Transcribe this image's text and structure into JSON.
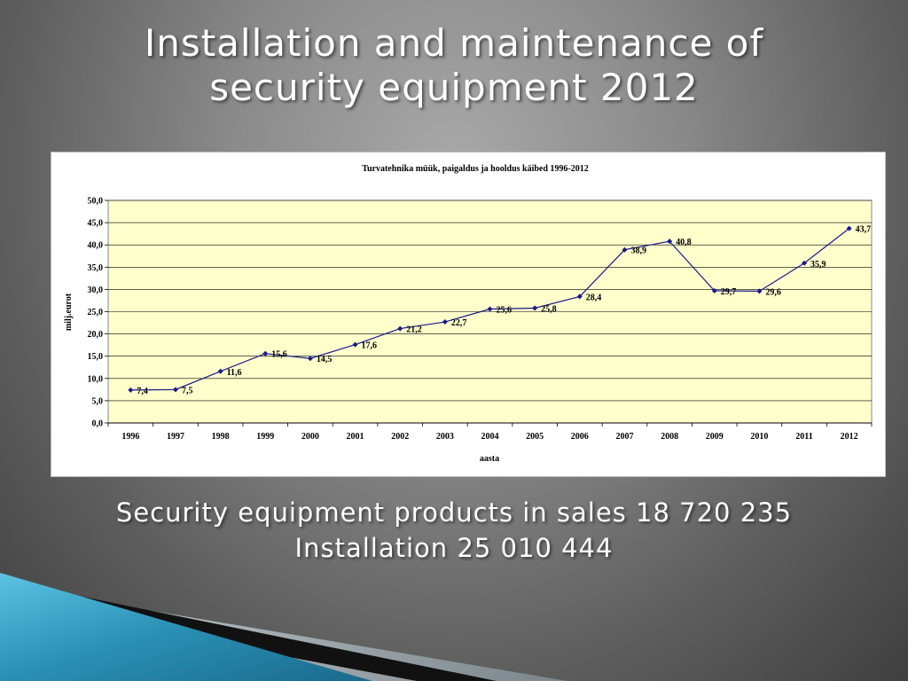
{
  "slide": {
    "title_line1": "Installation and maintenance of",
    "title_line2": "security equipment 2012",
    "caption_line1": "Security equipment products in sales 18 720 235",
    "caption_line2": "Installation 25 010 444"
  },
  "colors": {
    "plot_background": "#ffffcc",
    "series_line": "#1a1a8c",
    "gridline": "#000000",
    "decor_blue": "#2a8fb3"
  },
  "chart_data": {
    "type": "line",
    "title": "Turvatehnika müük, paigaldus ja hooldus käibed 1996-2012",
    "xlabel": "aasta",
    "ylabel": "milj.eurot",
    "ylim": [
      0,
      50
    ],
    "yticks": [
      "0,0",
      "5,0",
      "10,0",
      "15,0",
      "20,0",
      "25,0",
      "30,0",
      "35,0",
      "40,0",
      "45,0",
      "50,0"
    ],
    "grid": true,
    "legend": "none",
    "categories": [
      "1996",
      "1997",
      "1998",
      "1999",
      "2000",
      "2001",
      "2002",
      "2003",
      "2004",
      "2005",
      "2006",
      "2007",
      "2008",
      "2009",
      "2010",
      "2011",
      "2012"
    ],
    "series": [
      {
        "values": [
          7.4,
          7.5,
          11.6,
          15.6,
          14.5,
          17.6,
          21.2,
          22.7,
          25.6,
          25.8,
          28.4,
          38.9,
          40.8,
          29.7,
          29.6,
          35.9,
          43.7
        ],
        "labels": [
          "7,4",
          "7,5",
          "11,6",
          "15,6",
          "14,5",
          "17,6",
          "21,2",
          "22,7",
          "25,6",
          "25,8",
          "28,4",
          "38,9",
          "40,8",
          "29,7",
          "29,6",
          "35,9",
          "43,7"
        ]
      }
    ]
  }
}
